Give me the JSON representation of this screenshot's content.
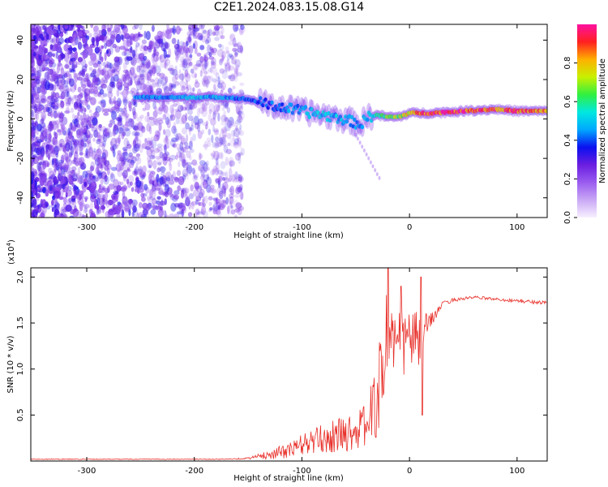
{
  "title": "C2E1.2024.083.15.08.G14",
  "colors": {
    "snr_line": "#e8302a",
    "background": "#ffffff",
    "colormap": [
      "#f8f0ff",
      "#c9a8f5",
      "#9a5cf0",
      "#6a1ee0",
      "#0a10f0",
      "#00a8ff",
      "#00e8e0",
      "#30f040",
      "#c8f000",
      "#ffb000",
      "#ff2020",
      "#ff10a0"
    ]
  },
  "chart_data": [
    {
      "type": "heatmap",
      "name": "spectrogram",
      "xlabel": "Height of straight line (km)",
      "ylabel": "Frequency (Hz)",
      "xlim": [
        -352,
        128
      ],
      "ylim": [
        -50,
        48
      ],
      "xticks": [
        -300,
        -200,
        -100,
        0,
        100
      ],
      "xtick_labels": [
        "-300",
        "-200",
        "-100",
        "0",
        "100"
      ],
      "yticks": [
        -40,
        -20,
        0,
        20,
        40
      ],
      "ytick_labels": [
        "-40",
        "-20",
        "0",
        "20",
        "40"
      ],
      "grid": false,
      "colorbar": {
        "label": "Normalized spectral amplitude",
        "range": [
          0,
          1
        ],
        "ticks": [
          0,
          0.2,
          0.4,
          0.6,
          0.8
        ],
        "tick_labels": [
          "0.0",
          "0.2",
          "0.4",
          "0.6",
          "0.8"
        ]
      },
      "ridge": {
        "x": [
          -255,
          -230,
          -200,
          -170,
          -150,
          -130,
          -110,
          -90,
          -70,
          -55,
          -45,
          -40,
          -30,
          -20,
          -10,
          0,
          20,
          50,
          80,
          100,
          128
        ],
        "y": [
          11,
          11,
          11,
          11,
          10,
          7,
          5,
          3,
          1,
          -1,
          -3,
          1,
          2,
          1,
          1,
          3,
          3,
          4,
          5,
          4,
          4
        ],
        "amplitude": [
          0.45,
          0.45,
          0.5,
          0.45,
          0.4,
          0.4,
          0.45,
          0.5,
          0.5,
          0.45,
          0.45,
          0.5,
          0.6,
          0.65,
          0.7,
          0.8,
          0.95,
          0.95,
          0.9,
          0.9,
          0.85
        ]
      },
      "noise_region_x": [
        -352,
        -155
      ]
    },
    {
      "type": "line",
      "name": "snr",
      "xlabel": "Height of straight line (km)",
      "ylabel": "SNR (10 * v/v)",
      "y_multiplier": "(x10^4)",
      "xlim": [
        -352,
        128
      ],
      "ylim": [
        0,
        2.1
      ],
      "xticks": [
        -300,
        -200,
        -100,
        0,
        100
      ],
      "xtick_labels": [
        "-300",
        "-200",
        "-100",
        "0",
        "100"
      ],
      "yticks": [
        0.5,
        1.0,
        1.5,
        2.0
      ],
      "ytick_labels": [
        "0.5",
        "1.0",
        "1.5",
        "2.0"
      ],
      "grid": false,
      "series": [
        {
          "x": [
            -352,
            -300,
            -250,
            -200,
            -170,
            -150,
            -130,
            -110,
            -100,
            -80,
            -60,
            -45,
            -35,
            -28,
            -22,
            -18,
            -12,
            -5,
            0,
            10,
            15,
            20,
            25,
            30,
            40,
            60,
            80,
            100,
            128
          ],
          "y": [
            0.02,
            0.02,
            0.02,
            0.02,
            0.02,
            0.03,
            0.07,
            0.12,
            0.18,
            0.24,
            0.3,
            0.35,
            0.5,
            0.8,
            1.3,
            1.5,
            1.2,
            1.3,
            1.35,
            1.3,
            1.45,
            1.55,
            1.6,
            1.7,
            1.75,
            1.78,
            1.76,
            1.74,
            1.72
          ],
          "noise": [
            0.004,
            0.004,
            0.004,
            0.004,
            0.004,
            0.01,
            0.05,
            0.09,
            0.12,
            0.16,
            0.2,
            0.22,
            0.35,
            0.5,
            0.6,
            0.5,
            0.4,
            0.4,
            0.35,
            0.3,
            0.15,
            0.08,
            0.05,
            0.03,
            0.02,
            0.015,
            0.015,
            0.02,
            0.02
          ],
          "peaks": [
            {
              "x": -20,
              "y": 2.1
            },
            {
              "x": 11,
              "y": 2.0
            },
            {
              "x": -8,
              "y": 1.9
            },
            {
              "x": 12,
              "y": 0.5
            }
          ]
        }
      ]
    }
  ]
}
